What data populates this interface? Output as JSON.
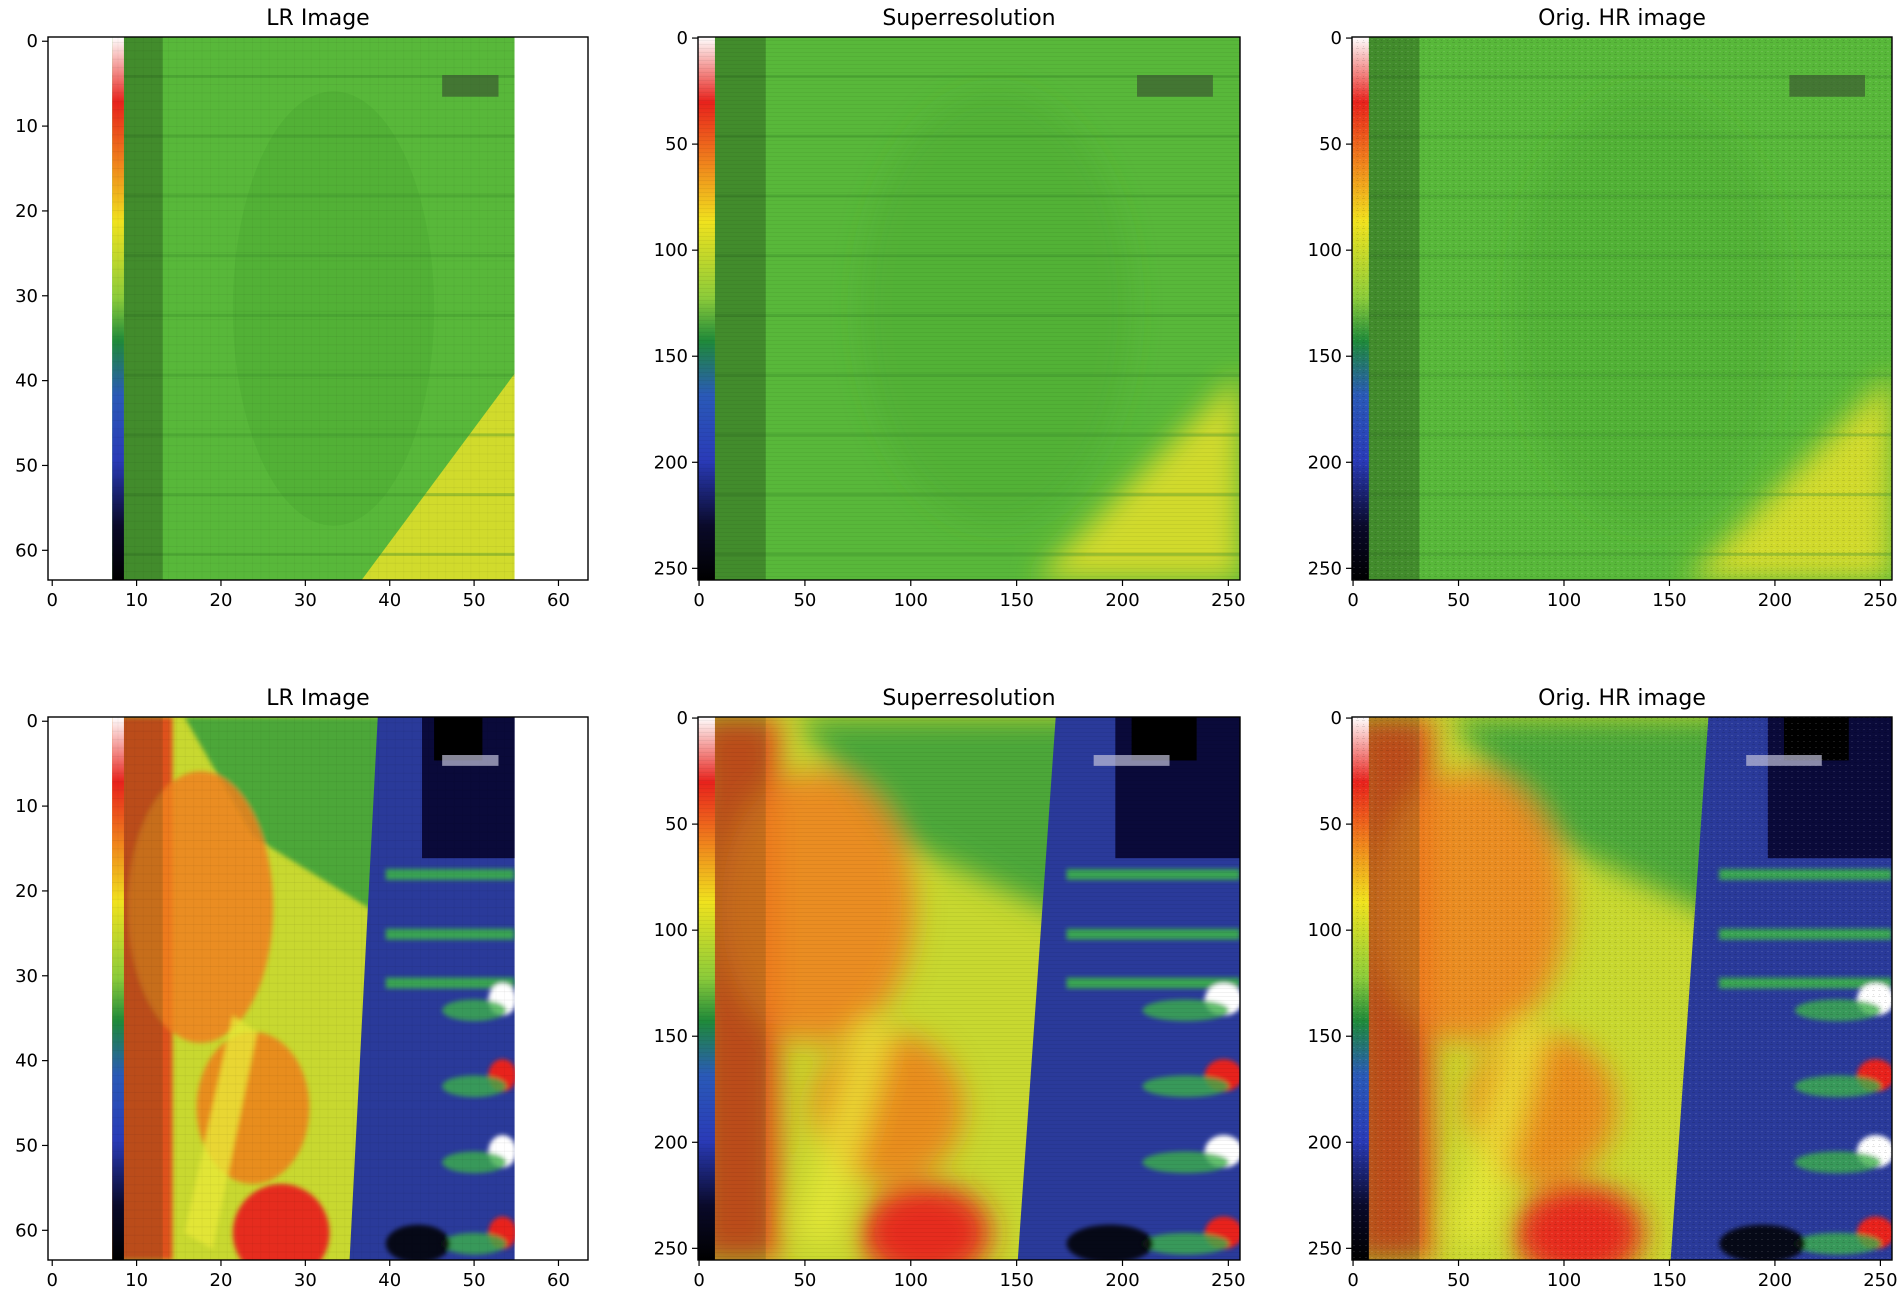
{
  "figure": {
    "description_free": true,
    "panels": [
      {
        "id": "r1c1",
        "title": "LR Image",
        "xticks": [
          "0",
          "10",
          "20",
          "30",
          "40",
          "50",
          "60"
        ],
        "yticks": [
          "0",
          "10",
          "20",
          "30",
          "40",
          "50",
          "60"
        ],
        "x_range": [
          0,
          64
        ],
        "y_range": [
          0,
          64
        ],
        "scene": "uniform",
        "resolution": "low"
      },
      {
        "id": "r1c2",
        "title": "Superresolution",
        "xticks": [
          "0",
          "50",
          "100",
          "150",
          "200",
          "250"
        ],
        "yticks": [
          "0",
          "50",
          "100",
          "150",
          "200",
          "250"
        ],
        "x_range": [
          0,
          256
        ],
        "y_range": [
          0,
          256
        ],
        "scene": "uniform",
        "resolution": "sr"
      },
      {
        "id": "r1c3",
        "title": "Orig. HR image",
        "xticks": [
          "0",
          "50",
          "100",
          "150",
          "200",
          "250"
        ],
        "yticks": [
          "0",
          "50",
          "100",
          "150",
          "200",
          "250"
        ],
        "x_range": [
          0,
          256
        ],
        "y_range": [
          0,
          256
        ],
        "scene": "uniform",
        "resolution": "hr"
      },
      {
        "id": "r2c1",
        "title": "LR Image",
        "xticks": [
          "0",
          "10",
          "20",
          "30",
          "40",
          "50",
          "60"
        ],
        "yticks": [
          "0",
          "10",
          "20",
          "30",
          "40",
          "50",
          "60"
        ],
        "x_range": [
          0,
          64
        ],
        "y_range": [
          0,
          64
        ],
        "scene": "hot",
        "resolution": "low"
      },
      {
        "id": "r2c2",
        "title": "Superresolution",
        "xticks": [
          "0",
          "50",
          "100",
          "150",
          "200",
          "250"
        ],
        "yticks": [
          "0",
          "50",
          "100",
          "150",
          "200",
          "250"
        ],
        "x_range": [
          0,
          256
        ],
        "y_range": [
          0,
          256
        ],
        "scene": "hot",
        "resolution": "sr"
      },
      {
        "id": "r2c3",
        "title": "Orig. HR image",
        "xticks": [
          "0",
          "50",
          "100",
          "150",
          "200",
          "250"
        ],
        "yticks": [
          "0",
          "50",
          "100",
          "150",
          "200",
          "250"
        ],
        "x_range": [
          0,
          256
        ],
        "y_range": [
          0,
          256
        ],
        "scene": "hot",
        "resolution": "hr"
      }
    ]
  },
  "colors": {
    "palette": [
      "#000000",
      "#2a3bb8",
      "#1f8a3a",
      "#f0e21e",
      "#e8221c",
      "#ffffff"
    ],
    "cool_green": "#58b83a",
    "warm_yellow": "#e6e02a",
    "hot_red": "#e23a1a",
    "cold_blue": "#2a3a9a"
  }
}
